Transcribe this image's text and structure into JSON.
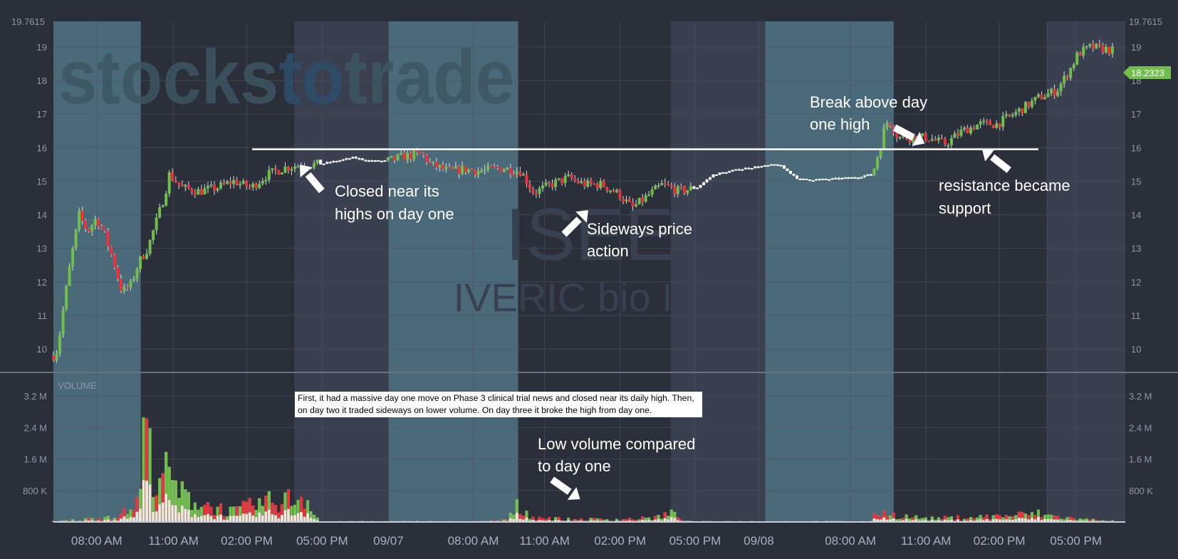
{
  "chart_data": [
    {
      "type": "candlestick",
      "title": "",
      "ticker": "ISEE",
      "company": "IVERIC bio Inc.",
      "watermark": "stockstotrade",
      "ylim": [
        9.3,
        19.7615
      ],
      "y_ticks": [
        10,
        11,
        12,
        13,
        14,
        15,
        16,
        17,
        18,
        19
      ],
      "y_max_label": "19.7615",
      "last_price_label": "18.2323",
      "last_price": 18.2323,
      "x_tick_labels": [
        "08:00 AM",
        "11:00 AM",
        "02:00 PM",
        "05:00 PM",
        "09/07",
        "08:00 AM",
        "11:00 AM",
        "02:00 PM",
        "05:00 PM",
        "09/08",
        "08:00 AM",
        "11:00 AM",
        "02:00 PM",
        "05:00 PM"
      ],
      "resistance_level": 15.95,
      "price_path": [
        [
          0,
          9.8
        ],
        [
          0.005,
          10.0
        ],
        [
          0.012,
          11.3
        ],
        [
          0.02,
          12.6
        ],
        [
          0.03,
          14.0
        ],
        [
          0.04,
          13.5
        ],
        [
          0.05,
          13.9
        ],
        [
          0.06,
          13.4
        ],
        [
          0.07,
          12.6
        ],
        [
          0.08,
          11.7
        ],
        [
          0.09,
          11.9
        ],
        [
          0.1,
          12.6
        ],
        [
          0.11,
          13.0
        ],
        [
          0.12,
          13.8
        ],
        [
          0.13,
          14.6
        ],
        [
          0.135,
          15.2
        ],
        [
          0.15,
          14.8
        ],
        [
          0.17,
          14.7
        ],
        [
          0.19,
          14.8
        ],
        [
          0.21,
          15.0
        ],
        [
          0.23,
          14.8
        ],
        [
          0.25,
          15.2
        ],
        [
          0.27,
          15.4
        ],
        [
          0.29,
          15.5
        ],
        [
          0.31,
          15.5
        ],
        [
          0.33,
          15.6
        ],
        [
          0.35,
          15.7
        ],
        [
          0.37,
          15.6
        ],
        [
          0.39,
          15.6
        ],
        [
          0.41,
          15.75
        ],
        [
          0.43,
          15.8
        ],
        [
          0.44,
          15.5
        ],
        [
          0.46,
          15.3
        ],
        [
          0.48,
          15.35
        ],
        [
          0.5,
          15.3
        ],
        [
          0.52,
          15.4
        ],
        [
          0.545,
          15.3
        ],
        [
          0.56,
          14.65
        ],
        [
          0.58,
          14.9
        ],
        [
          0.6,
          15.1
        ],
        [
          0.62,
          14.9
        ],
        [
          0.64,
          14.9
        ],
        [
          0.66,
          14.6
        ],
        [
          0.675,
          14.2
        ],
        [
          0.69,
          14.5
        ],
        [
          0.71,
          14.9
        ],
        [
          0.73,
          14.7
        ],
        [
          0.75,
          14.8
        ],
        [
          0.77,
          15.2
        ],
        [
          0.79,
          15.3
        ],
        [
          0.81,
          15.4
        ],
        [
          0.83,
          15.45
        ],
        [
          0.845,
          15.5
        ],
        [
          0.87,
          15.05
        ],
        [
          0.9,
          15.05
        ],
        [
          0.93,
          15.1
        ],
        [
          0.955,
          15.2
        ],
        [
          0.965,
          16.1
        ],
        [
          0.97,
          16.7
        ],
        [
          0.975,
          16.8
        ],
        [
          0.985,
          16.3
        ],
        [
          1.0,
          16.3
        ],
        [
          1.02,
          16.3
        ],
        [
          1.04,
          16.1
        ],
        [
          1.06,
          16.5
        ],
        [
          1.08,
          16.7
        ],
        [
          1.1,
          16.7
        ],
        [
          1.12,
          17.0
        ],
        [
          1.15,
          17.5
        ],
        [
          1.17,
          17.7
        ],
        [
          1.185,
          18.3
        ],
        [
          1.195,
          18.8
        ],
        [
          1.21,
          19.0
        ],
        [
          1.235,
          18.9
        ]
      ]
    },
    {
      "type": "bar",
      "title": "VOLUME",
      "ylim": [
        0,
        3800000
      ],
      "y_ticks": [
        "800 K",
        "1.6 M",
        "2.4 M",
        "3.2 M"
      ],
      "y_tick_values": [
        800000,
        1600000,
        2400000,
        3200000
      ],
      "volume_profile": [
        [
          0.0,
          0.02
        ],
        [
          0.04,
          0.08
        ],
        [
          0.08,
          0.22
        ],
        [
          0.1,
          0.6
        ],
        [
          0.107,
          3.5
        ],
        [
          0.11,
          2.0
        ],
        [
          0.13,
          1.4
        ],
        [
          0.15,
          0.8
        ],
        [
          0.18,
          0.5
        ],
        [
          0.21,
          0.3
        ],
        [
          0.24,
          0.55
        ],
        [
          0.27,
          0.65
        ],
        [
          0.29,
          0.75
        ],
        [
          0.3,
          0.6
        ],
        [
          0.31,
          0.02
        ],
        [
          0.5,
          0.02
        ],
        [
          0.53,
          0.07
        ],
        [
          0.54,
          0.45
        ],
        [
          0.56,
          0.15
        ],
        [
          0.6,
          0.08
        ],
        [
          0.66,
          0.08
        ],
        [
          0.7,
          0.12
        ],
        [
          0.72,
          0.25
        ],
        [
          0.73,
          0.15
        ],
        [
          0.74,
          0.02
        ],
        [
          0.955,
          0.02
        ],
        [
          0.96,
          0.35
        ],
        [
          0.98,
          0.2
        ],
        [
          1.02,
          0.1
        ],
        [
          1.08,
          0.15
        ],
        [
          1.12,
          0.2
        ],
        [
          1.15,
          0.25
        ],
        [
          1.17,
          0.15
        ],
        [
          1.2,
          0.08
        ],
        [
          1.235,
          0.05
        ]
      ]
    }
  ],
  "annotations": {
    "break_line1": "Break above day",
    "break_line2": "one high",
    "closed_line1": "Closed near its",
    "closed_line2": "highs on day one",
    "sideways_line1": "Sideways price",
    "sideways_line2": "action",
    "resistance_line1": "resistance became",
    "resistance_line2": "support",
    "lowvol_line1": "Low volume compared",
    "lowvol_line2": "to day one",
    "note": "First, it had a massive day one move on Phase 3 clinical trial news and closed near its daily high. Then, on day two it traded sideways on lower volume. On day three it broke the high from day one."
  },
  "colors": {
    "background": "#2a2f3a",
    "session_premarket": "#4a6a7a",
    "session_regular": "#2a2f3a",
    "session_after": "#3a4050",
    "up": "#6ec04a",
    "down": "#e8323c",
    "resistance_line": "#ffffff",
    "price_tag": "#6ec04a"
  }
}
